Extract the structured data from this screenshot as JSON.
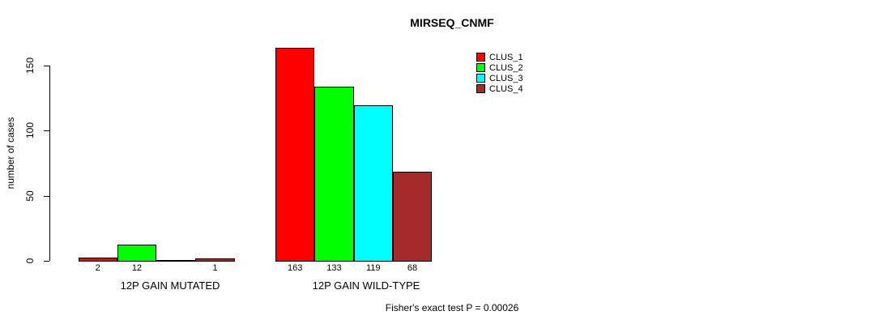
{
  "chart_data": {
    "type": "bar",
    "title": "MIRSEQ_CNMF",
    "ylabel": "number of cases",
    "xlabel": "",
    "ylim": [
      0,
      167
    ],
    "yticks": [
      0,
      50,
      100,
      150
    ],
    "grid": false,
    "legend_position": "top-right",
    "categories": [
      "12P GAIN MUTATED",
      "12P GAIN WILD-TYPE"
    ],
    "series": [
      {
        "name": "CLUS_1",
        "color": "#FF0000",
        "values": [
          2,
          163
        ]
      },
      {
        "name": "CLUS_2",
        "color": "#00FF00",
        "values": [
          12,
          133
        ]
      },
      {
        "name": "CLUS_3",
        "color": "#00FFFF",
        "values": [
          0,
          119
        ]
      },
      {
        "name": "CLUS_4",
        "color": "#A52A2A",
        "values": [
          1,
          68
        ]
      }
    ],
    "bar_value_labels": [
      [
        "2",
        "12",
        "",
        "1"
      ],
      [
        "163",
        "133",
        "119",
        "68"
      ]
    ],
    "annotation": "Fisher's exact test P = 0.00026",
    "axis_color": "#000000",
    "bar_border_color": "#000000"
  }
}
